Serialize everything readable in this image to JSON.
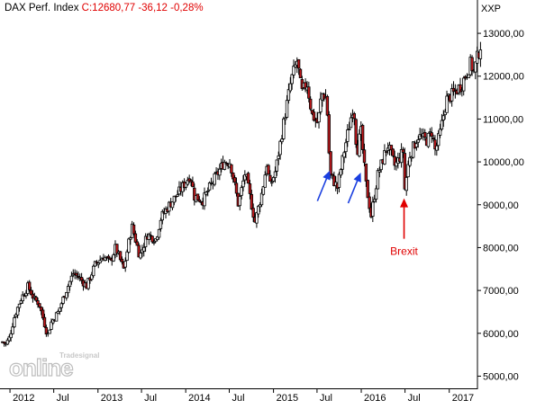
{
  "header": {
    "instrument": "DAX Perf. Index",
    "quote": "C:12680,77 -36,12 -0,28%"
  },
  "unit_label": "XXP",
  "watermark": {
    "brand": "Tradesignal",
    "product": "online"
  },
  "colors": {
    "up_candle": "#ffffff",
    "down_candle": "#c0181c",
    "outline": "#000000",
    "arrow_blue": "#1a3fe0",
    "arrow_red": "#e00000",
    "annotation_text": "#e00000",
    "header_quote": "#e00000"
  },
  "chart_data": {
    "type": "candlestick",
    "title": "DAX Perf. Index",
    "subtitle": "C:12680,77 -36,12 -0,28%",
    "y_axis": {
      "position": "right",
      "label": "XXP",
      "range": [
        4800,
        13400
      ],
      "ticks": [
        5000,
        6000,
        7000,
        8000,
        9000,
        10000,
        11000,
        12000,
        13000
      ],
      "tick_labels": [
        "5000,00",
        "6000,00",
        "7000,00",
        "8000,00",
        "9000,00",
        "10000,00",
        "11000,00",
        "12000,00",
        "13000,00"
      ]
    },
    "x_axis": {
      "range": [
        "2011-11-28",
        "2017-04-17"
      ],
      "ticks": [
        {
          "date": "2012-01-01",
          "label": "2012"
        },
        {
          "date": "2012-07-01",
          "label": "Jul"
        },
        {
          "date": "2013-01-01",
          "label": "2013"
        },
        {
          "date": "2013-07-01",
          "label": "Jul"
        },
        {
          "date": "2014-01-01",
          "label": "2014"
        },
        {
          "date": "2014-07-01",
          "label": "Jul"
        },
        {
          "date": "2015-01-01",
          "label": "2015"
        },
        {
          "date": "2015-07-01",
          "label": "Jul"
        },
        {
          "date": "2016-01-01",
          "label": "2016"
        },
        {
          "date": "2016-07-01",
          "label": "Jul"
        },
        {
          "date": "2017-01-01",
          "label": "2017"
        }
      ]
    },
    "grid": false,
    "approx_close_path": [
      [
        "2011-12-01",
        5800
      ],
      [
        "2011-12-15",
        5750
      ],
      [
        "2011-12-30",
        5900
      ],
      [
        "2012-01-20",
        6400
      ],
      [
        "2012-02-15",
        6800
      ],
      [
        "2012-03-16",
        7100
      ],
      [
        "2012-04-10",
        6800
      ],
      [
        "2012-05-01",
        6700
      ],
      [
        "2012-05-20",
        6300
      ],
      [
        "2012-06-05",
        5950
      ],
      [
        "2012-06-20",
        6250
      ],
      [
        "2012-07-20",
        6500
      ],
      [
        "2012-08-15",
        6900
      ],
      [
        "2012-09-20",
        7400
      ],
      [
        "2012-10-15",
        7300
      ],
      [
        "2012-11-15",
        7100
      ],
      [
        "2012-12-20",
        7600
      ],
      [
        "2013-01-25",
        7800
      ],
      [
        "2013-02-20",
        7650
      ],
      [
        "2013-03-15",
        8000
      ],
      [
        "2013-04-18",
        7500
      ],
      [
        "2013-05-22",
        8500
      ],
      [
        "2013-06-24",
        7800
      ],
      [
        "2013-07-25",
        8300
      ],
      [
        "2013-08-30",
        8200
      ],
      [
        "2013-09-20",
        8700
      ],
      [
        "2013-10-25",
        9000
      ],
      [
        "2013-12-05",
        9300
      ],
      [
        "2014-01-20",
        9700
      ],
      [
        "2014-02-05",
        9200
      ],
      [
        "2014-03-14",
        9100
      ],
      [
        "2014-04-15",
        9450
      ],
      [
        "2014-06-10",
        10000
      ],
      [
        "2014-07-05",
        10000
      ],
      [
        "2014-08-08",
        9000
      ],
      [
        "2014-09-05",
        9750
      ],
      [
        "2014-10-16",
        8600
      ],
      [
        "2014-11-15",
        9300
      ],
      [
        "2014-12-05",
        10000
      ],
      [
        "2014-12-16",
        9400
      ],
      [
        "2015-01-10",
        9800
      ],
      [
        "2015-02-15",
        11000
      ],
      [
        "2015-03-15",
        11900
      ],
      [
        "2015-04-10",
        12370
      ],
      [
        "2015-04-28",
        11600
      ],
      [
        "2015-05-20",
        11850
      ],
      [
        "2015-06-10",
        11100
      ],
      [
        "2015-07-05",
        10900
      ],
      [
        "2015-07-20",
        11600
      ],
      [
        "2015-08-10",
        11500
      ],
      [
        "2015-08-24",
        9700
      ],
      [
        "2015-09-24",
        9400
      ],
      [
        "2015-10-20",
        10200
      ],
      [
        "2015-11-30",
        11350
      ],
      [
        "2015-12-14",
        10200
      ],
      [
        "2015-12-30",
        10750
      ],
      [
        "2016-01-20",
        9500
      ],
      [
        "2016-02-11",
        8750
      ],
      [
        "2016-03-10",
        9700
      ],
      [
        "2016-04-20",
        10400
      ],
      [
        "2016-05-20",
        9900
      ],
      [
        "2016-06-23",
        10250
      ],
      [
        "2016-06-27",
        9250
      ],
      [
        "2016-07-20",
        10150
      ],
      [
        "2016-08-25",
        10600
      ],
      [
        "2016-09-30",
        10500
      ],
      [
        "2016-10-20",
        10700
      ],
      [
        "2016-11-04",
        10250
      ],
      [
        "2016-11-25",
        10700
      ],
      [
        "2016-12-20",
        11450
      ],
      [
        "2017-01-20",
        11600
      ],
      [
        "2017-02-20",
        11800
      ],
      [
        "2017-03-16",
        12100
      ],
      [
        "2017-03-31",
        12300
      ],
      [
        "2017-04-13",
        12100
      ],
      [
        "2017-04-28",
        12450
      ],
      [
        "2017-05-15",
        12800
      ]
    ],
    "annotations": [
      {
        "type": "arrow",
        "color": "blue",
        "direction": "up-right",
        "points_to": [
          "2015-08-24",
          9800
        ]
      },
      {
        "type": "arrow",
        "color": "blue",
        "direction": "up-right",
        "points_to": [
          "2015-12-30",
          9750
        ]
      },
      {
        "type": "arrow",
        "color": "red",
        "direction": "up",
        "points_to": [
          "2016-06-27",
          9150
        ],
        "label": "Brexit"
      }
    ]
  }
}
